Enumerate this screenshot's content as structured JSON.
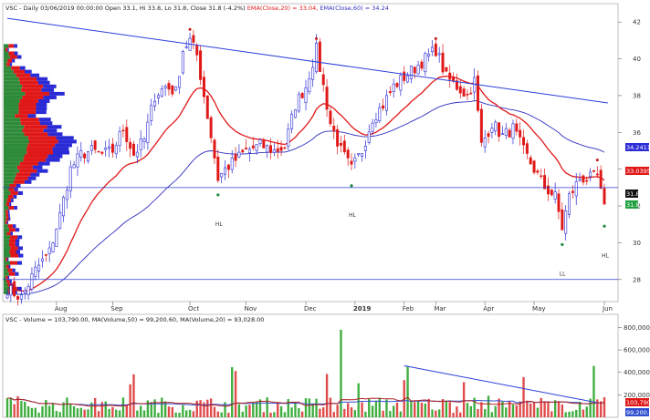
{
  "header": {
    "price_line": "VSC - Daily 03/06/2019 00:00:00 Open 33.1, Hi 33.8, Lo 31.8, Close 31.8 (-4.2%)",
    "ema20_label": "EMA(Close,20) = 33.04,",
    "ema60_label": "EMA(Close,60) = 34.24",
    "volume_line": "VSC - Volume = 103,790.00, MA(Volume,50) = 99,200.60, MA(Volume,20) = 93,028.00"
  },
  "colors": {
    "up": "#2b2bd6",
    "down": "#e01818",
    "ema20": "#e01818",
    "ema60": "#3030c0",
    "trend": "#2b3fd9",
    "vol_up": "#3fae3f",
    "vol_down": "#e04a4a",
    "vol_ma50": "#3050d0",
    "vol_ma20": "#b02020"
  },
  "badges": {
    "ema60": "34.2411",
    "ema20": "33.0395",
    "last": "31.8",
    "close": "31.8",
    "vol_last": "103,790",
    "vol_ma": "99,200.6"
  },
  "annotations": [
    "HL",
    "HL",
    "LL",
    "HL"
  ],
  "chart_data": {
    "type": "candlestick",
    "x_month_labels": [
      "Aug",
      "Sep",
      "Oct",
      "Nov",
      "Dec",
      "2019",
      "Feb",
      "Mar",
      "Apr",
      "May",
      "Jun"
    ],
    "y_ticks": [
      28,
      30,
      32,
      34,
      36,
      38,
      40,
      42
    ],
    "y_range": [
      26.8,
      43
    ],
    "volume_ticks": [
      "200,000",
      "400,000",
      "600,000",
      "800,000"
    ],
    "volume_tick_values": [
      200000,
      400000,
      600000,
      800000
    ],
    "volume_range": [
      0,
      820000
    ],
    "horizontal_levels": [
      33.0,
      28.0
    ],
    "trendline": {
      "from": [
        0,
        42.2
      ],
      "to": [
        171,
        37.6
      ]
    },
    "volume_trendline": {
      "from": [
        113,
        460000
      ],
      "to": [
        168,
        130000
      ]
    },
    "close_path": [
      [
        0,
        27.5
      ],
      [
        4,
        27.0
      ],
      [
        8,
        28.5
      ],
      [
        12,
        29.5
      ],
      [
        15,
        31.5
      ],
      [
        18,
        34.0
      ],
      [
        21,
        34.8
      ],
      [
        24,
        35.0
      ],
      [
        27,
        34.8
      ],
      [
        30,
        35.0
      ],
      [
        33,
        36.2
      ],
      [
        36,
        34.8
      ],
      [
        39,
        35.6
      ],
      [
        42,
        38.0
      ],
      [
        45,
        38.5
      ],
      [
        48,
        38.2
      ],
      [
        50,
        40.5
      ],
      [
        52,
        41.0
      ],
      [
        54,
        40.2
      ],
      [
        56,
        38.0
      ],
      [
        58,
        35.8
      ],
      [
        60,
        33.5
      ],
      [
        62,
        34.0
      ],
      [
        65,
        34.5
      ],
      [
        68,
        35.0
      ],
      [
        72,
        35.3
      ],
      [
        76,
        35.0
      ],
      [
        79,
        35.2
      ],
      [
        82,
        37.5
      ],
      [
        85,
        38.5
      ],
      [
        88,
        40.5
      ],
      [
        90,
        38.5
      ],
      [
        92,
        36.5
      ],
      [
        95,
        35.0
      ],
      [
        98,
        34.0
      ],
      [
        101,
        35.0
      ],
      [
        104,
        36.8
      ],
      [
        107,
        37.5
      ],
      [
        110,
        38.5
      ],
      [
        113,
        39.0
      ],
      [
        116,
        39.5
      ],
      [
        119,
        40.0
      ],
      [
        122,
        40.5
      ],
      [
        125,
        39.0
      ],
      [
        128,
        38.5
      ],
      [
        131,
        38.0
      ],
      [
        133,
        38.8
      ],
      [
        135,
        35.3
      ],
      [
        138,
        36.5
      ],
      [
        141,
        35.8
      ],
      [
        144,
        36.2
      ],
      [
        147,
        35.0
      ],
      [
        150,
        34.0
      ],
      [
        153,
        33.0
      ],
      [
        156,
        32.5
      ],
      [
        158,
        30.8
      ],
      [
        160,
        32.5
      ],
      [
        163,
        33.5
      ],
      [
        166,
        33.5
      ],
      [
        168,
        33.6
      ],
      [
        170,
        31.8
      ]
    ],
    "bar_count": 171
  }
}
